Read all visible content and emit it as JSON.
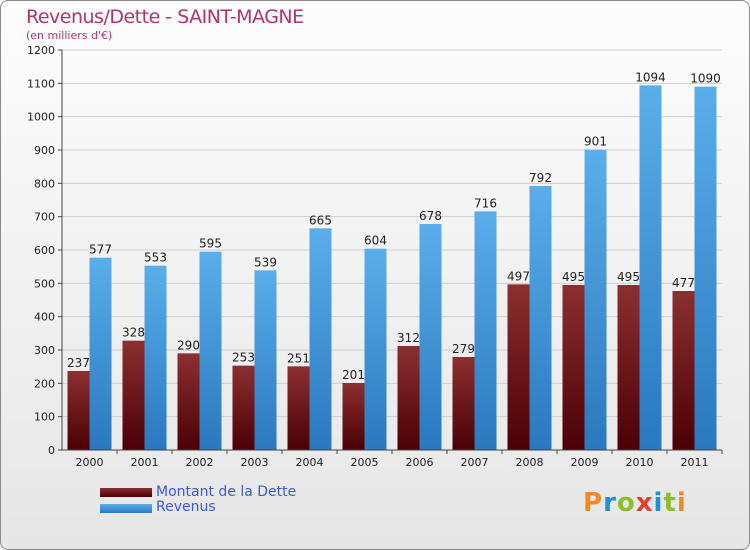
{
  "header": {
    "title": "Revenus/Dette - SAINT-MAGNE",
    "subtitle": "(en milliers d'€)"
  },
  "legend": {
    "dette_label": "Montant de la Dette",
    "revenus_label": "Revenus"
  },
  "logo": {
    "text": "Proxiti"
  },
  "colors": {
    "dette_top": "#8c2f30",
    "dette_bottom": "#4a0006",
    "revenus_top": "#5aaeea",
    "revenus_bottom": "#2a78bf",
    "title": "#b3336b",
    "legend_text": "#3b5bdc"
  },
  "chart_data": {
    "type": "bar",
    "title": "Revenus/Dette - SAINT-MAGNE",
    "subtitle": "(en milliers d'€)",
    "categories": [
      "2000",
      "2001",
      "2002",
      "2003",
      "2004",
      "2005",
      "2006",
      "2007",
      "2008",
      "2009",
      "2010",
      "2011"
    ],
    "series": [
      {
        "name": "Montant de la Dette",
        "values": [
          237,
          328,
          290,
          253,
          251,
          201,
          312,
          279,
          497,
          495,
          495,
          477
        ]
      },
      {
        "name": "Revenus",
        "values": [
          577,
          553,
          595,
          539,
          665,
          604,
          678,
          716,
          792,
          901,
          1094,
          1090
        ]
      }
    ],
    "ylim": [
      0,
      1200
    ],
    "yticks": [
      0,
      100,
      200,
      300,
      400,
      500,
      600,
      700,
      800,
      900,
      1000,
      1100,
      1200
    ],
    "grid": true,
    "legend_position": "bottom-left"
  }
}
